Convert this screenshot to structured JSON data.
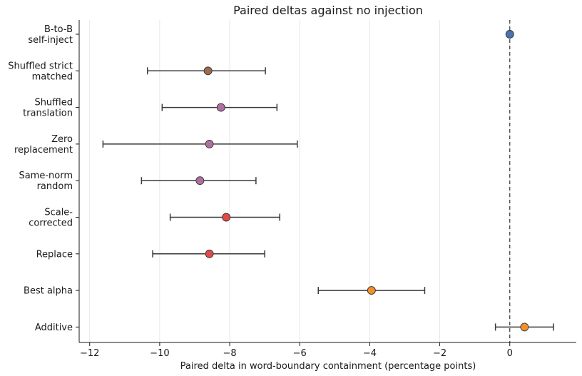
{
  "chart_data": {
    "type": "scatter",
    "title": "Paired deltas against no injection",
    "xlabel": "Paired delta in word-boundary containment (percentage points)",
    "ylabel": "",
    "xlim": [
      -12.3,
      1.9
    ],
    "xticks": [
      -12,
      -10,
      -8,
      -6,
      -4,
      -2,
      0
    ],
    "xtick_labels": [
      "−12",
      "−10",
      "−8",
      "−6",
      "−4",
      "−2",
      "0"
    ],
    "grid": "vertical",
    "reference_line": 0,
    "points": [
      {
        "label": [
          "B-to-B",
          "self-inject"
        ],
        "value": 0.0,
        "ci": null,
        "color": "#4c72b0"
      },
      {
        "label": [
          "Shuffled strict",
          "matched"
        ],
        "value": -8.62,
        "ci": [
          -10.35,
          -6.98
        ],
        "color": "#9c6b4f"
      },
      {
        "label": [
          "Shuffled",
          "translation"
        ],
        "value": -8.25,
        "ci": [
          -9.93,
          -6.65
        ],
        "color": "#b06fa0"
      },
      {
        "label": [
          "Zero",
          "replacement"
        ],
        "value": -8.58,
        "ci": [
          -11.62,
          -6.07
        ],
        "color": "#b06fa0"
      },
      {
        "label": [
          "Same-norm",
          "random"
        ],
        "value": -8.85,
        "ci": [
          -10.52,
          -7.25
        ],
        "color": "#b06fa0"
      },
      {
        "label": [
          "Scale-",
          "corrected"
        ],
        "value": -8.1,
        "ci": [
          -9.7,
          -6.57
        ],
        "color": "#e04a4a"
      },
      {
        "label": [
          "Replace"
        ],
        "value": -8.58,
        "ci": [
          -10.2,
          -7.0
        ],
        "color": "#e04a4a"
      },
      {
        "label": [
          "Best alpha"
        ],
        "value": -3.95,
        "ci": [
          -5.47,
          -2.43
        ],
        "color": "#f28e2b"
      },
      {
        "label": [
          "Additive"
        ],
        "value": 0.42,
        "ci": [
          -0.41,
          1.25
        ],
        "color": "#f28e2b"
      }
    ]
  }
}
